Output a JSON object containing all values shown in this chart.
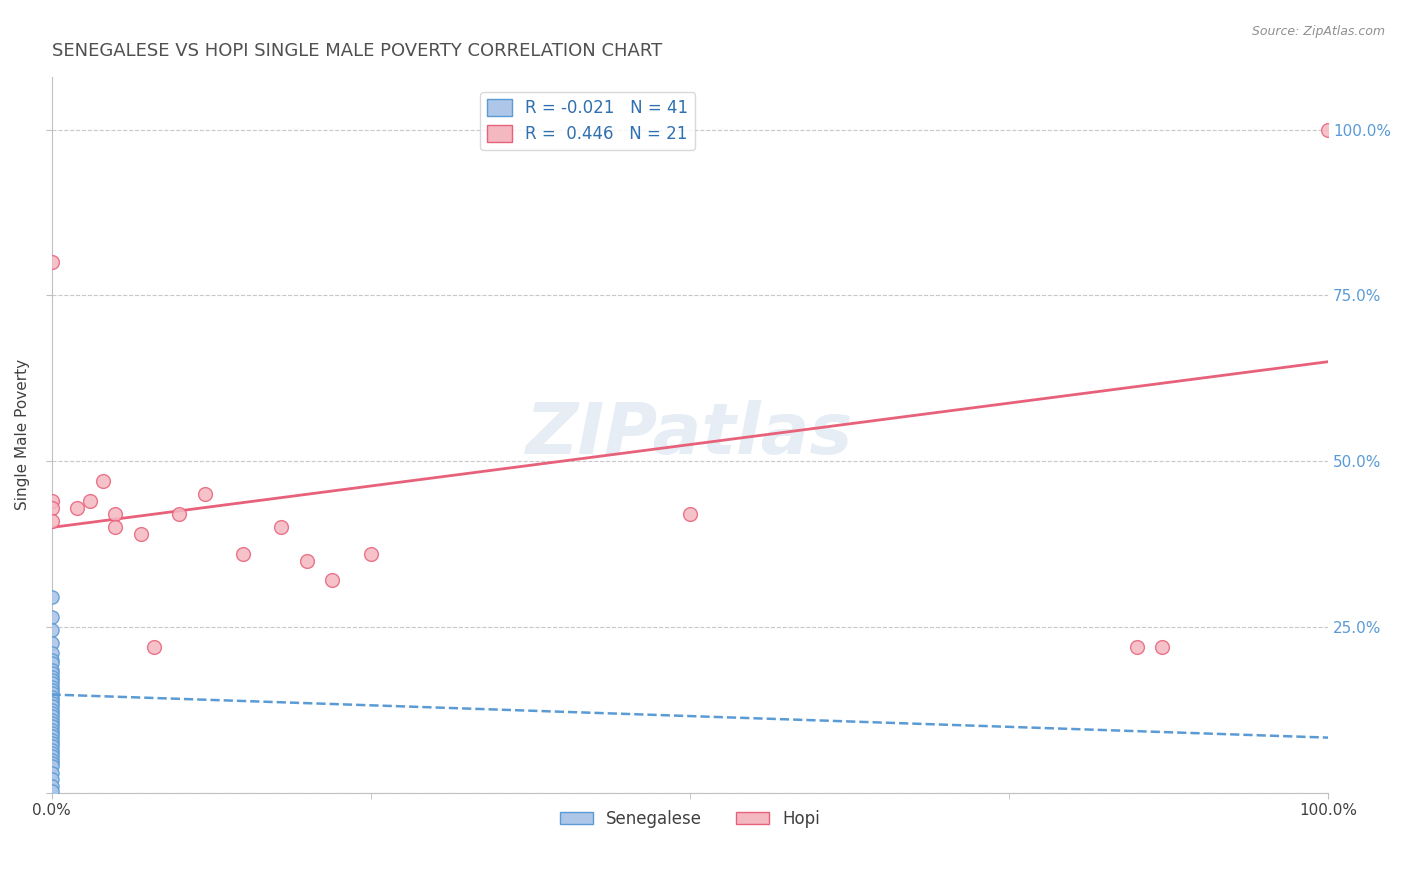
{
  "title": "SENEGALESE VS HOPI SINGLE MALE POVERTY CORRELATION CHART",
  "source": "Source: ZipAtlas.com",
  "ylabel": "Single Male Poverty",
  "watermark": "ZIPatlas",
  "senegalese": {
    "x": [
      0.0,
      0.0,
      0.0,
      0.0,
      0.0,
      0.0,
      0.0,
      0.0,
      0.0,
      0.0,
      0.0,
      0.0,
      0.0,
      0.0,
      0.0,
      0.0,
      0.0,
      0.0,
      0.0,
      0.0,
      0.0,
      0.0,
      0.0,
      0.0,
      0.0,
      0.0,
      0.0,
      0.0,
      0.0,
      0.0,
      0.0,
      0.0,
      0.0,
      0.0,
      0.0,
      0.0,
      0.0,
      0.0,
      0.0,
      0.0,
      0.0
    ],
    "y": [
      0.295,
      0.265,
      0.245,
      0.225,
      0.21,
      0.2,
      0.195,
      0.185,
      0.18,
      0.175,
      0.17,
      0.165,
      0.16,
      0.155,
      0.15,
      0.145,
      0.14,
      0.135,
      0.13,
      0.125,
      0.12,
      0.115,
      0.11,
      0.105,
      0.1,
      0.095,
      0.09,
      0.085,
      0.08,
      0.075,
      0.07,
      0.065,
      0.06,
      0.055,
      0.05,
      0.045,
      0.04,
      0.03,
      0.02,
      0.01,
      0.002
    ],
    "color": "#aec6e8",
    "edge_color": "#5b9bd5",
    "R": -0.021,
    "N": 41,
    "trend_color": "#5b9bd5",
    "trend_style": "dashed",
    "trend_x0": 0.0,
    "trend_x1": 1.0,
    "trend_y0": 0.148,
    "trend_y1": 0.083
  },
  "hopi": {
    "x": [
      0.0,
      0.0,
      0.0,
      0.0,
      0.02,
      0.03,
      0.04,
      0.05,
      0.05,
      0.07,
      0.08,
      0.1,
      0.12,
      0.15,
      0.18,
      0.2,
      0.22,
      0.25,
      0.85,
      0.87,
      0.5
    ],
    "y": [
      0.8,
      0.44,
      0.43,
      0.41,
      0.43,
      0.44,
      0.47,
      0.42,
      0.4,
      0.39,
      0.22,
      0.42,
      0.45,
      0.36,
      0.4,
      0.35,
      0.32,
      0.36,
      0.22,
      0.22,
      0.42
    ],
    "color": "#f4b8c1",
    "edge_color": "#e8617a",
    "R": 0.446,
    "N": 21,
    "trend_color": "#e8617a",
    "trend_style": "solid",
    "trend_x0": 0.0,
    "trend_x1": 1.0,
    "trend_y0": 0.4,
    "trend_y1": 0.65
  },
  "hopi_extra": {
    "x": [
      1.0
    ],
    "y": [
      1.0
    ],
    "color": "#f4b8c1",
    "edge_color": "#e8617a"
  },
  "xlim": [
    0.0,
    1.0
  ],
  "ylim": [
    0.0,
    1.08
  ],
  "x_ticks": [
    0.0,
    1.0
  ],
  "x_tick_labels": [
    "0.0%",
    "100.0%"
  ],
  "y_ticks": [
    0.0,
    0.25,
    0.5,
    0.75,
    1.0
  ],
  "y_tick_labels_right": [
    "",
    "25.0%",
    "50.0%",
    "75.0%",
    "100.0%"
  ],
  "grid_color": "#c8c8c8",
  "background_color": "#ffffff",
  "title_color": "#505050",
  "source_color": "#909090",
  "marker_size": 90
}
